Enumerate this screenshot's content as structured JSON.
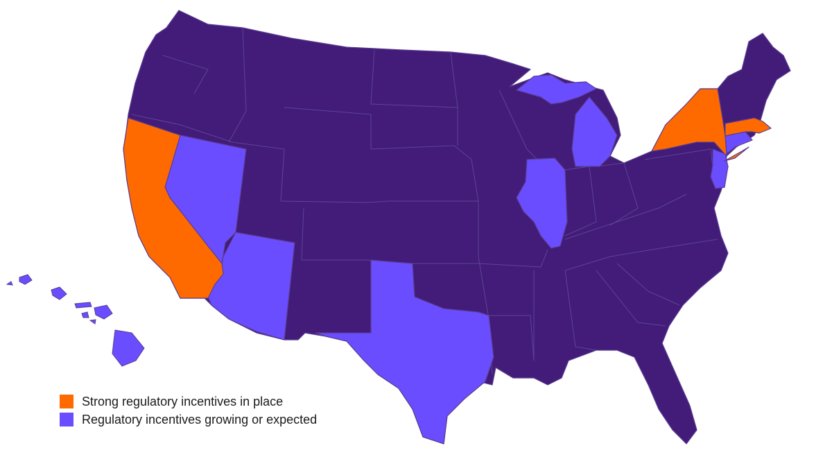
{
  "colors": {
    "default_state": "#421c78",
    "strong": "#ff6a00",
    "growing": "#6a4dff",
    "border": "#5a3d92"
  },
  "legend": {
    "items": [
      {
        "label": "Strong regulatory incentives in place",
        "color": "#ff6a00",
        "key": "strong"
      },
      {
        "label": "Regulatory incentives growing or expected",
        "color": "#6a4dff",
        "key": "growing"
      }
    ]
  },
  "states": {
    "strong": [
      "California",
      "New York",
      "Massachusetts"
    ],
    "growing": [
      "Nevada",
      "Arizona",
      "Texas",
      "Illinois",
      "Michigan",
      "New Jersey",
      "Connecticut",
      "Hawaii"
    ]
  }
}
